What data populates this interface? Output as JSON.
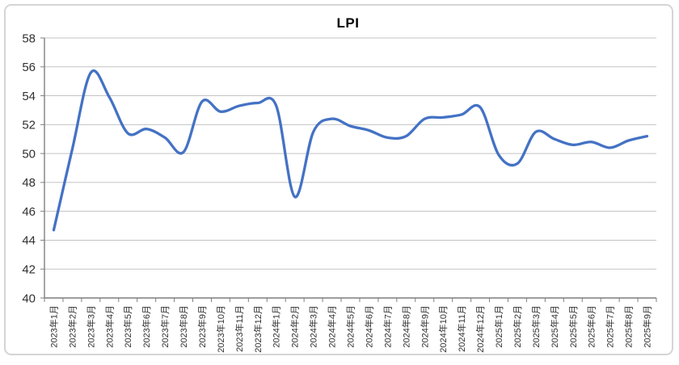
{
  "title": "LPI",
  "colors": {
    "line": "#4472C4",
    "grid": "#c3c3c3",
    "axis": "#7f7f7f",
    "tick": "#7f7f7f",
    "label": "#303030",
    "frame_border": "#d5d5d5",
    "background": "#ffffff"
  },
  "chart_data": {
    "type": "line",
    "title": "LPI",
    "xlabel": "",
    "ylabel": "",
    "ylim": [
      40,
      58
    ],
    "ytick_step": 2,
    "grid": true,
    "legend_position": "none",
    "smooth": true,
    "x_label_rotation": -90,
    "categories": [
      "2023年1月",
      "2023年2月",
      "2023年3月",
      "2023年4月",
      "2023年5月",
      "2023年6月",
      "2023年7月",
      "2023年8月",
      "2023年9月",
      "2023年10月",
      "2023年11月",
      "2023年12月",
      "2024年1月",
      "2024年2月",
      "2024年3月",
      "2024年4月",
      "2024年5月",
      "2024年6月",
      "2024年7月",
      "2024年8月",
      "2024年9月",
      "2024年10月",
      "2024年11月",
      "2024年12月",
      "2025年1月",
      "2025年2月",
      "2025年3月",
      "2025年4月",
      "2025年5月",
      "2025年6月",
      "2025年7月",
      "2025年8月",
      "2025年9月"
    ],
    "series": [
      {
        "name": "LPI",
        "color": "#4472C4",
        "values": [
          44.7,
          50.3,
          55.6,
          53.9,
          51.4,
          51.7,
          51.1,
          50.1,
          53.6,
          52.9,
          53.3,
          53.5,
          53.3,
          47.0,
          51.5,
          52.4,
          51.9,
          51.6,
          51.1,
          51.2,
          52.4,
          52.5,
          52.7,
          53.2,
          49.9,
          49.3,
          51.5,
          51.0,
          50.6,
          50.8,
          50.4,
          50.9,
          51.2
        ]
      }
    ]
  }
}
